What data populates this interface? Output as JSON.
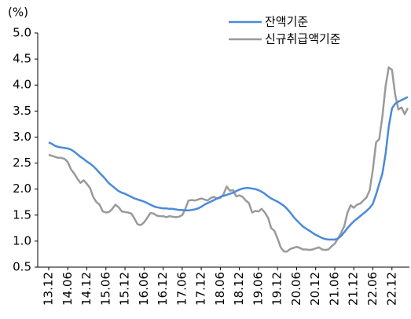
{
  "chart_data": {
    "type": "line",
    "y_label": "(%)",
    "categories": [
      "13.12",
      null,
      null,
      null,
      null,
      null,
      "14.06",
      null,
      null,
      null,
      null,
      null,
      "14.12",
      null,
      null,
      null,
      null,
      null,
      "15.06",
      null,
      null,
      null,
      null,
      null,
      "15.12",
      null,
      null,
      null,
      null,
      null,
      "16.06",
      null,
      null,
      null,
      null,
      null,
      "16.12",
      null,
      null,
      null,
      null,
      null,
      "17.06",
      null,
      null,
      null,
      null,
      null,
      "17.12",
      null,
      null,
      null,
      null,
      null,
      "18.06",
      null,
      null,
      null,
      null,
      null,
      "18.12",
      null,
      null,
      null,
      null,
      null,
      "19.06",
      null,
      null,
      null,
      null,
      null,
      "19.12",
      null,
      null,
      null,
      null,
      null,
      "20.06",
      null,
      null,
      null,
      null,
      null,
      "20.12",
      null,
      null,
      null,
      null,
      null,
      "21.06",
      null,
      null,
      null,
      null,
      null,
      "21.12",
      null,
      null,
      null,
      null,
      null,
      "22.06",
      null,
      null,
      null,
      null,
      null,
      "22.12",
      null,
      null,
      null,
      null,
      null
    ],
    "series": [
      {
        "name": "잔액기준",
        "color": "#4a8ad8",
        "values": [
          2.9,
          2.87,
          2.83,
          2.81,
          2.8,
          2.79,
          2.78,
          2.76,
          2.72,
          2.67,
          2.62,
          2.58,
          2.53,
          2.49,
          2.44,
          2.38,
          2.31,
          2.25,
          2.18,
          2.11,
          2.06,
          2.01,
          1.96,
          1.93,
          1.91,
          1.88,
          1.85,
          1.82,
          1.8,
          1.78,
          1.76,
          1.73,
          1.7,
          1.67,
          1.65,
          1.64,
          1.63,
          1.63,
          1.62,
          1.62,
          1.61,
          1.6,
          1.6,
          1.59,
          1.59,
          1.6,
          1.61,
          1.63,
          1.66,
          1.7,
          1.73,
          1.76,
          1.79,
          1.82,
          1.85,
          1.87,
          1.89,
          1.91,
          1.93,
          1.96,
          1.99,
          2.01,
          2.02,
          2.02,
          2.01,
          2.0,
          1.98,
          1.95,
          1.91,
          1.86,
          1.82,
          1.79,
          1.76,
          1.72,
          1.68,
          1.62,
          1.55,
          1.47,
          1.4,
          1.34,
          1.28,
          1.24,
          1.2,
          1.16,
          1.12,
          1.09,
          1.06,
          1.04,
          1.03,
          1.03,
          1.03,
          1.05,
          1.1,
          1.17,
          1.25,
          1.32,
          1.38,
          1.43,
          1.48,
          1.53,
          1.58,
          1.64,
          1.72,
          1.9,
          2.1,
          2.3,
          2.68,
          3.2,
          3.55,
          3.64,
          3.68,
          3.71,
          3.74,
          3.77
        ]
      },
      {
        "name": "신규취급액기준",
        "color": "#9a9a9a",
        "values": [
          2.66,
          2.64,
          2.62,
          2.6,
          2.6,
          2.58,
          2.52,
          2.38,
          2.3,
          2.2,
          2.12,
          2.17,
          2.1,
          2.02,
          1.85,
          1.75,
          1.7,
          1.57,
          1.55,
          1.56,
          1.62,
          1.7,
          1.65,
          1.57,
          1.56,
          1.55,
          1.53,
          1.43,
          1.32,
          1.31,
          1.36,
          1.45,
          1.54,
          1.53,
          1.49,
          1.48,
          1.48,
          1.46,
          1.48,
          1.47,
          1.46,
          1.47,
          1.5,
          1.62,
          1.78,
          1.79,
          1.78,
          1.8,
          1.82,
          1.8,
          1.78,
          1.83,
          1.85,
          1.82,
          1.83,
          1.9,
          2.05,
          1.97,
          1.98,
          1.86,
          1.88,
          1.85,
          1.78,
          1.73,
          1.55,
          1.58,
          1.57,
          1.62,
          1.55,
          1.45,
          1.25,
          1.2,
          1.05,
          0.88,
          0.8,
          0.8,
          0.85,
          0.87,
          0.89,
          0.87,
          0.84,
          0.84,
          0.83,
          0.84,
          0.86,
          0.88,
          0.84,
          0.83,
          0.84,
          0.9,
          0.95,
          1.05,
          1.16,
          1.29,
          1.55,
          1.69,
          1.64,
          1.7,
          1.72,
          1.78,
          1.84,
          1.98,
          2.38,
          2.9,
          2.96,
          3.4,
          3.98,
          4.34,
          4.29,
          3.82,
          3.53,
          3.57,
          3.44,
          3.56
        ]
      }
    ],
    "ylim": [
      0.5,
      5.0
    ],
    "yticks": [
      0.5,
      {
        "value": 1,
        "label": "1.0"
      },
      1.5,
      {
        "value": 2,
        "label": "2.0"
      },
      2.5,
      {
        "value": 3,
        "label": "3.0"
      },
      3.5,
      {
        "value": 4,
        "label": "4.0"
      },
      4.5,
      {
        "value": 5,
        "label": "5.0"
      }
    ],
    "grid": false,
    "legend": "upper right"
  }
}
